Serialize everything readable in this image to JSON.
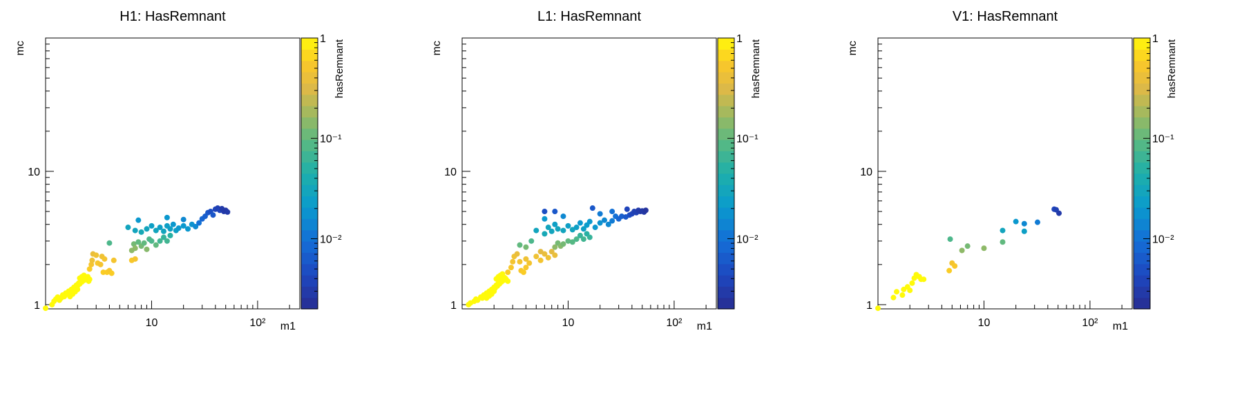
{
  "chart_data": [
    {
      "type": "scatter",
      "title": "H1: HasRemnant",
      "xlabel": "m1",
      "ylabel": "mc",
      "colorbar_label": "hasRemnant",
      "xscale": "log",
      "yscale": "log",
      "zscale": "log",
      "xlim": [
        1,
        250
      ],
      "ylim": [
        0.93,
        100
      ],
      "zlim": [
        0.002,
        1
      ],
      "x_ticks": [
        {
          "value": 10,
          "label": "10"
        },
        {
          "value": 100,
          "label": "10²"
        }
      ],
      "y_ticks": [
        {
          "value": 1,
          "label": "1"
        },
        {
          "value": 10,
          "label": "10"
        }
      ],
      "z_ticks": [
        {
          "value": 1,
          "label": "1"
        },
        {
          "value": 0.1,
          "label": "10⁻¹"
        },
        {
          "value": 0.01,
          "label": "10⁻²"
        }
      ],
      "grid": false,
      "points": [
        [
          1.0,
          0.94,
          1
        ],
        [
          1.15,
          1.0,
          1
        ],
        [
          1.2,
          1.06,
          1
        ],
        [
          1.25,
          1.1,
          1
        ],
        [
          1.3,
          1.14,
          1
        ],
        [
          1.35,
          1.08,
          1
        ],
        [
          1.4,
          1.12,
          1
        ],
        [
          1.45,
          1.18,
          1
        ],
        [
          1.5,
          1.15,
          1
        ],
        [
          1.55,
          1.22,
          1
        ],
        [
          1.6,
          1.2,
          1
        ],
        [
          1.65,
          1.26,
          1
        ],
        [
          1.7,
          1.24,
          1
        ],
        [
          1.75,
          1.3,
          1
        ],
        [
          1.8,
          1.28,
          1
        ],
        [
          1.85,
          1.35,
          1
        ],
        [
          1.9,
          1.33,
          1
        ],
        [
          1.95,
          1.4,
          1
        ],
        [
          2.0,
          1.38,
          1
        ],
        [
          2.05,
          1.45,
          1
        ],
        [
          2.1,
          1.43,
          1
        ],
        [
          2.15,
          1.5,
          1
        ],
        [
          2.2,
          1.48,
          1
        ],
        [
          2.25,
          1.55,
          1
        ],
        [
          2.3,
          1.52,
          1
        ],
        [
          2.35,
          1.58,
          1
        ],
        [
          2.4,
          1.6,
          1
        ],
        [
          2.45,
          1.56,
          1
        ],
        [
          2.5,
          1.62,
          1
        ],
        [
          2.55,
          1.5,
          1
        ],
        [
          2.6,
          1.55,
          1
        ],
        [
          2.1,
          1.58,
          1
        ],
        [
          2.2,
          1.62,
          1
        ],
        [
          2.3,
          1.66,
          1
        ],
        [
          1.9,
          1.25,
          1
        ],
        [
          2.0,
          1.3,
          1
        ],
        [
          1.7,
          1.15,
          1
        ],
        [
          1.8,
          1.2,
          1
        ],
        [
          2.6,
          1.85,
          0.6
        ],
        [
          2.7,
          2.0,
          0.5
        ],
        [
          2.75,
          2.15,
          0.45
        ],
        [
          2.8,
          2.4,
          0.4
        ],
        [
          3.0,
          2.35,
          0.45
        ],
        [
          3.1,
          2.05,
          0.55
        ],
        [
          3.3,
          2.0,
          0.5
        ],
        [
          3.4,
          2.3,
          0.45
        ],
        [
          3.6,
          2.2,
          0.5
        ],
        [
          3.8,
          1.75,
          0.6
        ],
        [
          4.0,
          1.8,
          0.55
        ],
        [
          4.2,
          1.72,
          0.6
        ],
        [
          3.5,
          1.75,
          0.6
        ],
        [
          4.4,
          2.15,
          0.5
        ],
        [
          6.5,
          2.15,
          0.55
        ],
        [
          7.0,
          2.2,
          0.5
        ],
        [
          4.0,
          2.9,
          0.08
        ],
        [
          6.5,
          2.55,
          0.15
        ],
        [
          6.8,
          2.85,
          0.12
        ],
        [
          7.0,
          2.65,
          0.15
        ],
        [
          7.5,
          2.95,
          0.1
        ],
        [
          8.0,
          2.75,
          0.12
        ],
        [
          8.5,
          2.9,
          0.1
        ],
        [
          9.0,
          2.6,
          0.14
        ],
        [
          9.5,
          3.1,
          0.08
        ],
        [
          10.0,
          3.0,
          0.08
        ],
        [
          11.0,
          2.8,
          0.1
        ],
        [
          12.0,
          3.0,
          0.07
        ],
        [
          13.0,
          3.2,
          0.06
        ],
        [
          14.0,
          3.0,
          0.07
        ],
        [
          15.0,
          3.3,
          0.05
        ],
        [
          6.0,
          3.8,
          0.03
        ],
        [
          7.0,
          3.6,
          0.03
        ],
        [
          8.0,
          3.5,
          0.035
        ],
        [
          9.0,
          3.7,
          0.03
        ],
        [
          10.0,
          3.9,
          0.025
        ],
        [
          11.0,
          3.6,
          0.03
        ],
        [
          12.0,
          3.8,
          0.025
        ],
        [
          13.0,
          3.55,
          0.03
        ],
        [
          14.0,
          3.9,
          0.025
        ],
        [
          15.0,
          3.7,
          0.025
        ],
        [
          16.0,
          4.0,
          0.02
        ],
        [
          17.0,
          3.6,
          0.025
        ],
        [
          18.0,
          3.75,
          0.02
        ],
        [
          20.0,
          3.9,
          0.02
        ],
        [
          22.0,
          3.7,
          0.02
        ],
        [
          24.0,
          4.0,
          0.018
        ],
        [
          26.0,
          3.85,
          0.015
        ],
        [
          7.5,
          4.3,
          0.02
        ],
        [
          14.0,
          4.5,
          0.02
        ],
        [
          20.0,
          4.35,
          0.015
        ],
        [
          28.0,
          4.1,
          0.01
        ],
        [
          30.0,
          4.4,
          0.008
        ],
        [
          32.0,
          4.6,
          0.007
        ],
        [
          34.0,
          4.9,
          0.006
        ],
        [
          36.0,
          5.0,
          0.005
        ],
        [
          38.0,
          4.7,
          0.006
        ],
        [
          40.0,
          5.2,
          0.004
        ],
        [
          42.0,
          5.3,
          0.0035
        ],
        [
          44.0,
          5.1,
          0.004
        ],
        [
          46.0,
          5.25,
          0.003
        ],
        [
          48.0,
          5.0,
          0.003
        ],
        [
          50.0,
          5.1,
          0.0028
        ],
        [
          52.0,
          4.95,
          0.003
        ]
      ]
    },
    {
      "type": "scatter",
      "title": "L1: HasRemnant",
      "xlabel": "m1",
      "ylabel": "mc",
      "colorbar_label": "hasRemnant",
      "xscale": "log",
      "yscale": "log",
      "zscale": "log",
      "xlim": [
        1,
        250
      ],
      "ylim": [
        0.93,
        100
      ],
      "zlim": [
        0.002,
        1
      ],
      "x_ticks": [
        {
          "value": 10,
          "label": "10"
        },
        {
          "value": 100,
          "label": "10²"
        }
      ],
      "y_ticks": [
        {
          "value": 1,
          "label": "1"
        },
        {
          "value": 10,
          "label": "10"
        }
      ],
      "z_ticks": [
        {
          "value": 1,
          "label": "1"
        },
        {
          "value": 0.1,
          "label": "10⁻¹"
        },
        {
          "value": 0.01,
          "label": "10⁻²"
        }
      ],
      "grid": false,
      "points": [
        [
          1.15,
          1.0,
          1
        ],
        [
          1.2,
          1.03,
          1
        ],
        [
          1.3,
          1.06,
          1
        ],
        [
          1.35,
          1.1,
          1
        ],
        [
          1.4,
          1.08,
          1
        ],
        [
          1.5,
          1.14,
          1
        ],
        [
          1.55,
          1.12,
          1
        ],
        [
          1.6,
          1.18,
          1
        ],
        [
          1.65,
          1.16,
          1
        ],
        [
          1.7,
          1.22,
          1
        ],
        [
          1.75,
          1.2,
          1
        ],
        [
          1.8,
          1.26,
          1
        ],
        [
          1.85,
          1.24,
          1
        ],
        [
          1.9,
          1.3,
          1
        ],
        [
          1.95,
          1.28,
          1
        ],
        [
          2.0,
          1.35,
          1
        ],
        [
          2.05,
          1.33,
          1
        ],
        [
          2.1,
          1.4,
          1
        ],
        [
          2.15,
          1.38,
          1
        ],
        [
          2.2,
          1.45,
          1
        ],
        [
          2.25,
          1.43,
          1
        ],
        [
          2.3,
          1.5,
          1
        ],
        [
          2.35,
          1.48,
          1
        ],
        [
          2.4,
          1.55,
          1
        ],
        [
          2.45,
          1.52,
          1
        ],
        [
          2.5,
          1.6,
          1
        ],
        [
          2.55,
          1.58,
          1
        ],
        [
          2.6,
          1.55,
          1
        ],
        [
          2.7,
          1.5,
          1
        ],
        [
          2.2,
          1.62,
          1
        ],
        [
          2.3,
          1.66,
          1
        ],
        [
          2.4,
          1.7,
          1
        ],
        [
          2.1,
          1.56,
          1
        ],
        [
          1.9,
          1.2,
          1
        ],
        [
          2.0,
          1.26,
          1
        ],
        [
          1.7,
          1.12,
          1
        ],
        [
          1.8,
          1.16,
          1
        ],
        [
          2.7,
          1.75,
          0.6
        ],
        [
          2.9,
          1.9,
          0.55
        ],
        [
          3.0,
          2.1,
          0.5
        ],
        [
          3.1,
          2.3,
          0.45
        ],
        [
          3.3,
          2.4,
          0.4
        ],
        [
          3.5,
          2.1,
          0.5
        ],
        [
          3.6,
          1.8,
          0.55
        ],
        [
          3.8,
          1.75,
          0.6
        ],
        [
          4.0,
          1.9,
          0.55
        ],
        [
          4.3,
          2.05,
          0.5
        ],
        [
          5.0,
          2.3,
          0.45
        ],
        [
          5.5,
          2.15,
          0.5
        ],
        [
          6.0,
          2.4,
          0.4
        ],
        [
          6.5,
          2.25,
          0.45
        ],
        [
          7.0,
          2.5,
          0.35
        ],
        [
          7.5,
          2.35,
          0.4
        ],
        [
          5.5,
          2.5,
          0.35
        ],
        [
          4.0,
          2.2,
          0.45
        ],
        [
          3.5,
          2.8,
          0.1
        ],
        [
          4.0,
          2.7,
          0.12
        ],
        [
          4.5,
          3.0,
          0.08
        ],
        [
          7.5,
          2.7,
          0.15
        ],
        [
          8.0,
          2.9,
          0.12
        ],
        [
          8.5,
          2.75,
          0.14
        ],
        [
          9.0,
          2.85,
          0.12
        ],
        [
          10.0,
          3.0,
          0.1
        ],
        [
          11.0,
          2.95,
          0.09
        ],
        [
          12.0,
          3.1,
          0.08
        ],
        [
          13.0,
          3.3,
          0.06
        ],
        [
          14.0,
          3.1,
          0.07
        ],
        [
          15.0,
          3.4,
          0.05
        ],
        [
          16.0,
          3.2,
          0.06
        ],
        [
          5.0,
          3.6,
          0.03
        ],
        [
          6.0,
          3.4,
          0.035
        ],
        [
          6.5,
          3.8,
          0.03
        ],
        [
          7.0,
          3.55,
          0.03
        ],
        [
          7.5,
          4.0,
          0.025
        ],
        [
          8.0,
          3.7,
          0.03
        ],
        [
          9.0,
          3.6,
          0.03
        ],
        [
          10.0,
          3.9,
          0.025
        ],
        [
          11.0,
          3.65,
          0.03
        ],
        [
          12.0,
          3.8,
          0.025
        ],
        [
          13.0,
          4.1,
          0.02
        ],
        [
          14.0,
          3.7,
          0.025
        ],
        [
          15.0,
          3.95,
          0.022
        ],
        [
          16.0,
          4.2,
          0.02
        ],
        [
          18.0,
          3.8,
          0.02
        ],
        [
          20.0,
          4.1,
          0.018
        ],
        [
          22.0,
          4.3,
          0.015
        ],
        [
          24.0,
          4.0,
          0.015
        ],
        [
          26.0,
          4.25,
          0.012
        ],
        [
          28.0,
          4.6,
          0.01
        ],
        [
          20.0,
          4.8,
          0.012
        ],
        [
          26.0,
          5.0,
          0.01
        ],
        [
          9.0,
          4.6,
          0.015
        ],
        [
          6.0,
          4.4,
          0.02
        ],
        [
          30.0,
          4.4,
          0.008
        ],
        [
          32.0,
          4.6,
          0.007
        ],
        [
          35.0,
          4.55,
          0.006
        ],
        [
          38.0,
          4.7,
          0.005
        ],
        [
          40.0,
          4.8,
          0.004
        ],
        [
          42.0,
          5.0,
          0.0035
        ],
        [
          44.0,
          4.9,
          0.0035
        ],
        [
          46.0,
          5.1,
          0.003
        ],
        [
          48.0,
          5.0,
          0.003
        ],
        [
          50.0,
          5.05,
          0.0028
        ],
        [
          52.0,
          4.95,
          0.0028
        ],
        [
          54.0,
          5.1,
          0.0025
        ],
        [
          36.0,
          5.2,
          0.004
        ],
        [
          17.0,
          5.3,
          0.006
        ],
        [
          7.5,
          5.0,
          0.006
        ],
        [
          6.0,
          5.0,
          0.005
        ]
      ]
    },
    {
      "type": "scatter",
      "title": "V1: HasRemnant",
      "xlabel": "m1",
      "ylabel": "mc",
      "colorbar_label": "hasRemnant",
      "xscale": "log",
      "yscale": "log",
      "zscale": "log",
      "xlim": [
        1,
        250
      ],
      "ylim": [
        0.93,
        100
      ],
      "zlim": [
        0.002,
        1
      ],
      "x_ticks": [
        {
          "value": 10,
          "label": "10"
        },
        {
          "value": 100,
          "label": "10²"
        }
      ],
      "y_ticks": [
        {
          "value": 1,
          "label": "1"
        },
        {
          "value": 10,
          "label": "10"
        }
      ],
      "z_ticks": [
        {
          "value": 1,
          "label": "1"
        },
        {
          "value": 0.1,
          "label": "10⁻¹"
        },
        {
          "value": 0.01,
          "label": "10⁻²"
        }
      ],
      "grid": false,
      "points": [
        [
          1.0,
          0.94,
          1
        ],
        [
          1.4,
          1.13,
          1
        ],
        [
          1.5,
          1.25,
          1
        ],
        [
          1.7,
          1.18,
          1
        ],
        [
          1.75,
          1.3,
          1
        ],
        [
          1.9,
          1.36,
          1
        ],
        [
          2.0,
          1.28,
          1
        ],
        [
          2.1,
          1.45,
          1
        ],
        [
          2.2,
          1.58,
          1
        ],
        [
          2.3,
          1.68,
          1
        ],
        [
          2.45,
          1.62,
          1
        ],
        [
          2.55,
          1.55,
          1
        ],
        [
          2.7,
          1.55,
          1
        ],
        [
          4.7,
          1.8,
          0.6
        ],
        [
          5.0,
          2.05,
          0.5
        ],
        [
          5.3,
          1.95,
          0.55
        ],
        [
          4.8,
          3.1,
          0.08
        ],
        [
          6.2,
          2.55,
          0.15
        ],
        [
          7.0,
          2.75,
          0.12
        ],
        [
          10.0,
          2.65,
          0.15
        ],
        [
          15.0,
          2.95,
          0.1
        ],
        [
          15.0,
          3.6,
          0.03
        ],
        [
          20.0,
          4.2,
          0.02
        ],
        [
          24.0,
          4.05,
          0.015
        ],
        [
          24.0,
          3.55,
          0.025
        ],
        [
          32.0,
          4.15,
          0.012
        ],
        [
          46.0,
          5.2,
          0.004
        ],
        [
          48.0,
          5.15,
          0.0035
        ],
        [
          51.0,
          4.85,
          0.003
        ]
      ]
    }
  ]
}
